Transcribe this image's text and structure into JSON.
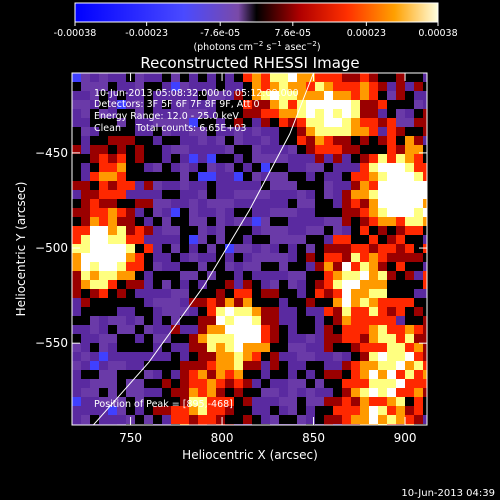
{
  "colorbar": {
    "ticks": [
      "-0.00038",
      "-0.00023",
      "-7.6e-05",
      "7.6e-05",
      "0.00023",
      "0.00038"
    ],
    "tick_values": [
      -0.00038,
      -0.00023,
      -7.6e-05,
      7.6e-05,
      0.00023,
      0.00038
    ],
    "range": [
      -0.00038,
      0.00038
    ]
  },
  "chart_data": {
    "type": "heatmap",
    "title": "Reconstructed RHESSI Image",
    "xlabel": "Heliocentric X (arcsec)",
    "ylabel": "Heliocentric Y (arcsec)",
    "xlim": [
      718,
      912
    ],
    "ylim": [
      -593,
      -408
    ],
    "xticks": [
      750,
      800,
      850,
      900
    ],
    "yticks": [
      -450,
      -500,
      -550
    ],
    "xtick_labels": [
      "750",
      "800",
      "850",
      "900"
    ],
    "ytick_labels": [
      "−450",
      "−500",
      "−550"
    ],
    "grid": false,
    "info_lines": [
      "10-Jun-2013 05:08:32.000 to 05:12:08.000",
      "Detectors: 3F 5F 6F 7F 8F 9F, Att 0",
      "Energy Range: 12.0 - 25.0 keV",
      "Clean     Total counts: 6.65E+03"
    ],
    "peak_label": "Position of Peak = [895,-468]",
    "peak": [
      895,
      -468
    ],
    "limb_curve": [
      [
        726,
        -597
      ],
      [
        760,
        -560
      ],
      [
        790,
        -520
      ],
      [
        815,
        -480
      ],
      [
        837,
        -440
      ],
      [
        850,
        -408
      ]
    ],
    "sources": [
      {
        "x": 898,
        "y": -470,
        "amp": 1.0
      },
      {
        "x": 735,
        "y": -503,
        "amp": 0.95
      },
      {
        "x": 808,
        "y": -545,
        "amp": 0.9
      },
      {
        "x": 860,
        "y": -428,
        "amp": 0.75
      },
      {
        "x": 830,
        "y": -412,
        "amp": 0.6
      },
      {
        "x": 872,
        "y": -520,
        "amp": 0.7
      },
      {
        "x": 895,
        "y": -560,
        "amp": 0.6
      },
      {
        "x": 790,
        "y": -585,
        "amp": 0.55
      },
      {
        "x": 740,
        "y": -460,
        "amp": 0.35
      },
      {
        "x": 880,
        "y": -590,
        "amp": 0.5
      }
    ],
    "colors": {
      "scale": [
        "#0000ff",
        "#4040ff",
        "#6a3aa8",
        "#5a2aa0",
        "#000000",
        "#9a0000",
        "#ff2800",
        "#ff9a00",
        "#ffff80",
        "#ffffff"
      ]
    }
  },
  "footer": {
    "timestamp": "10-Jun-2013 04:39"
  }
}
